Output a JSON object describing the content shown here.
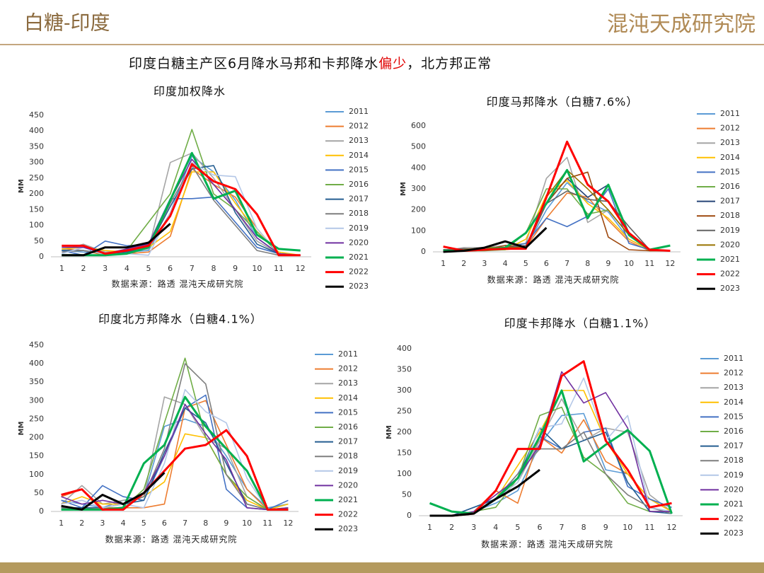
{
  "header": {
    "title": "白糖-印度",
    "logo": "混沌天成研究院"
  },
  "headline": {
    "parts": [
      "印度白糖主产区6月降水马邦和卡邦降水",
      "偏少",
      "，北方邦正常"
    ],
    "colors": [
      "#111111",
      "#e00000",
      "#111111"
    ]
  },
  "chart_data": [
    {
      "type": "line",
      "title": "印度加权降水",
      "y_label": "MM",
      "source": "数据来源：路透 混沌天成研究院",
      "categories": [
        1,
        2,
        3,
        4,
        5,
        6,
        7,
        8,
        9,
        10,
        11,
        12
      ],
      "ylim": [
        0,
        450
      ],
      "yticks": [
        0,
        50,
        100,
        150,
        200,
        250,
        300,
        350,
        400,
        450
      ],
      "series": [
        {
          "name": "2011",
          "color": "#5b9bd5",
          "values": [
            20,
            15,
            10,
            15,
            20,
            140,
            320,
            270,
            180,
            60,
            10,
            5
          ]
        },
        {
          "name": "2012",
          "color": "#ed7d31",
          "values": [
            25,
            20,
            5,
            10,
            15,
            65,
            280,
            230,
            190,
            90,
            10,
            5
          ]
        },
        {
          "name": "2013",
          "color": "#a5a5a5",
          "values": [
            20,
            40,
            15,
            20,
            25,
            300,
            330,
            250,
            150,
            50,
            10,
            5
          ]
        },
        {
          "name": "2014",
          "color": "#ffc000",
          "values": [
            25,
            30,
            20,
            15,
            30,
            80,
            270,
            270,
            170,
            80,
            15,
            5
          ]
        },
        {
          "name": "2015",
          "color": "#4472c4",
          "values": [
            20,
            5,
            50,
            35,
            40,
            185,
            185,
            190,
            110,
            30,
            10,
            5
          ]
        },
        {
          "name": "2016",
          "color": "#70ad47",
          "values": [
            5,
            5,
            5,
            20,
            110,
            200,
            405,
            200,
            150,
            80,
            10,
            5
          ]
        },
        {
          "name": "2017",
          "color": "#255e91",
          "values": [
            20,
            20,
            10,
            15,
            30,
            160,
            280,
            290,
            140,
            40,
            10,
            5
          ]
        },
        {
          "name": "2018",
          "color": "#7f7f7f",
          "values": [
            15,
            20,
            10,
            20,
            30,
            170,
            290,
            180,
            100,
            20,
            5,
            5
          ]
        },
        {
          "name": "2019",
          "color": "#b4c7e7",
          "values": [
            10,
            30,
            5,
            10,
            5,
            140,
            300,
            260,
            255,
            90,
            10,
            5
          ]
        },
        {
          "name": "2020",
          "color": "#7030a0",
          "values": [
            30,
            30,
            10,
            25,
            40,
            180,
            310,
            230,
            150,
            60,
            10,
            5
          ]
        },
        {
          "name": "2021",
          "color": "#00b050",
          "width": 3,
          "values": [
            5,
            5,
            5,
            10,
            30,
            180,
            330,
            185,
            210,
            70,
            25,
            20
          ]
        },
        {
          "name": "2022",
          "color": "#ff0000",
          "width": 3,
          "values": [
            35,
            35,
            10,
            20,
            35,
            130,
            295,
            240,
            215,
            135,
            5,
            5
          ]
        },
        {
          "name": "2023",
          "color": "#000000",
          "width": 3,
          "values": [
            5,
            5,
            30,
            30,
            45,
            105,
            null,
            null,
            null,
            null,
            null,
            null
          ]
        }
      ]
    },
    {
      "type": "line",
      "title": "印度马邦降水（白糖7.6%）",
      "y_label": "MM",
      "source": "数据来源：路透 混沌天成研究院",
      "categories": [
        1,
        2,
        3,
        4,
        5,
        6,
        7,
        8,
        9,
        10,
        11,
        12
      ],
      "ylim": [
        0,
        600
      ],
      "yticks": [
        0,
        100,
        200,
        300,
        400,
        500,
        600
      ],
      "series": [
        {
          "name": "2011",
          "color": "#5b9bd5",
          "values": [
            5,
            10,
            20,
            15,
            20,
            200,
            330,
            240,
            190,
            60,
            10,
            5
          ]
        },
        {
          "name": "2012",
          "color": "#ed7d31",
          "values": [
            10,
            15,
            10,
            10,
            20,
            160,
            280,
            260,
            150,
            50,
            5,
            5
          ]
        },
        {
          "name": "2013",
          "color": "#a5a5a5",
          "values": [
            5,
            20,
            20,
            30,
            40,
            350,
            450,
            140,
            200,
            80,
            10,
            5
          ]
        },
        {
          "name": "2014",
          "color": "#ffc000",
          "values": [
            10,
            10,
            10,
            10,
            60,
            270,
            340,
            230,
            160,
            60,
            10,
            5
          ]
        },
        {
          "name": "2015",
          "color": "#4472c4",
          "values": [
            10,
            5,
            10,
            20,
            40,
            160,
            120,
            170,
            300,
            40,
            10,
            5
          ]
        },
        {
          "name": "2016",
          "color": "#70ad47",
          "values": [
            5,
            5,
            5,
            10,
            90,
            300,
            300,
            180,
            200,
            80,
            10,
            5
          ]
        },
        {
          "name": "2017",
          "color": "#264478",
          "values": [
            10,
            10,
            10,
            20,
            20,
            230,
            350,
            260,
            320,
            90,
            10,
            5
          ]
        },
        {
          "name": "2018",
          "color": "#9e480e",
          "values": [
            10,
            10,
            10,
            30,
            20,
            230,
            350,
            380,
            70,
            10,
            5,
            5
          ]
        },
        {
          "name": "2019",
          "color": "#636363",
          "values": [
            10,
            15,
            10,
            20,
            30,
            230,
            290,
            250,
            240,
            120,
            10,
            5
          ]
        },
        {
          "name": "2020",
          "color": "#997300",
          "values": [
            5,
            10,
            20,
            20,
            20,
            260,
            390,
            300,
            200,
            80,
            10,
            5
          ]
        },
        {
          "name": "2021",
          "color": "#00b050",
          "width": 3,
          "values": [
            5,
            5,
            10,
            20,
            90,
            230,
            390,
            160,
            320,
            80,
            10,
            30
          ]
        },
        {
          "name": "2022",
          "color": "#ff0000",
          "width": 3,
          "values": [
            25,
            5,
            10,
            15,
            15,
            260,
            525,
            320,
            240,
            90,
            10,
            5
          ]
        },
        {
          "name": "2023",
          "color": "#000000",
          "width": 3,
          "values": [
            0,
            5,
            20,
            50,
            20,
            115,
            null,
            null,
            null,
            null,
            null,
            null
          ]
        }
      ]
    },
    {
      "type": "line",
      "title": "印度北方邦降水（白糖4.1%）",
      "y_label": "MM",
      "source": "数据来源：路透 混沌天成研究院",
      "categories": [
        1,
        2,
        3,
        4,
        5,
        6,
        7,
        8,
        9,
        10,
        11,
        12
      ],
      "ylim": [
        0,
        450
      ],
      "yticks": [
        0,
        50,
        100,
        150,
        200,
        250,
        300,
        350,
        400,
        450
      ],
      "series": [
        {
          "name": "2011",
          "color": "#5b9bd5",
          "values": [
            30,
            20,
            10,
            30,
            40,
            230,
            250,
            230,
            150,
            60,
            10,
            20
          ]
        },
        {
          "name": "2012",
          "color": "#ed7d31",
          "values": [
            40,
            60,
            10,
            10,
            10,
            20,
            280,
            300,
            180,
            60,
            5,
            10
          ]
        },
        {
          "name": "2013",
          "color": "#a5a5a5",
          "values": [
            20,
            70,
            20,
            30,
            40,
            310,
            290,
            200,
            170,
            40,
            5,
            10
          ]
        },
        {
          "name": "2014",
          "color": "#ffc000",
          "values": [
            20,
            40,
            20,
            20,
            40,
            80,
            210,
            200,
            100,
            30,
            5,
            20
          ]
        },
        {
          "name": "2015",
          "color": "#4472c4",
          "values": [
            30,
            10,
            70,
            40,
            30,
            150,
            280,
            315,
            60,
            10,
            5,
            30
          ]
        },
        {
          "name": "2016",
          "color": "#70ad47",
          "values": [
            10,
            10,
            5,
            10,
            60,
            240,
            415,
            200,
            100,
            40,
            5,
            5
          ]
        },
        {
          "name": "2017",
          "color": "#255e91",
          "values": [
            10,
            10,
            10,
            20,
            30,
            160,
            280,
            240,
            130,
            20,
            5,
            5
          ]
        },
        {
          "name": "2018",
          "color": "#7f7f7f",
          "values": [
            10,
            5,
            10,
            20,
            40,
            170,
            400,
            345,
            100,
            20,
            5,
            5
          ]
        },
        {
          "name": "2019",
          "color": "#b4c7e7",
          "values": [
            20,
            30,
            10,
            20,
            10,
            130,
            330,
            270,
            240,
            90,
            5,
            5
          ]
        },
        {
          "name": "2020",
          "color": "#7030a0",
          "values": [
            40,
            20,
            30,
            20,
            50,
            150,
            290,
            210,
            140,
            10,
            5,
            10
          ]
        },
        {
          "name": "2021",
          "color": "#00b050",
          "width": 3,
          "values": [
            5,
            5,
            5,
            10,
            130,
            180,
            310,
            230,
            170,
            110,
            5,
            5
          ]
        },
        {
          "name": "2022",
          "color": "#ff0000",
          "width": 3,
          "values": [
            45,
            60,
            5,
            5,
            50,
            110,
            170,
            180,
            220,
            150,
            5,
            5
          ]
        },
        {
          "name": "2023",
          "color": "#000000",
          "width": 3,
          "values": [
            15,
            5,
            45,
            20,
            50,
            105,
            null,
            null,
            null,
            null,
            null,
            null
          ]
        }
      ]
    },
    {
      "type": "line",
      "title": "印度卡邦降水（白糖1.1%）",
      "y_label": "MM",
      "source": "数据来源：路透 混沌天成研究院",
      "categories": [
        1,
        2,
        3,
        4,
        5,
        6,
        7,
        8,
        9,
        10,
        11,
        12
      ],
      "ylim": [
        0,
        400
      ],
      "yticks": [
        0,
        50,
        100,
        150,
        200,
        250,
        300,
        350,
        400
      ],
      "series": [
        {
          "name": "2011",
          "color": "#5b9bd5",
          "values": [
            0,
            0,
            10,
            30,
            60,
            170,
            240,
            245,
            110,
            100,
            40,
            10
          ]
        },
        {
          "name": "2012",
          "color": "#ed7d31",
          "values": [
            0,
            0,
            10,
            60,
            30,
            190,
            150,
            230,
            130,
            100,
            40,
            10
          ]
        },
        {
          "name": "2013",
          "color": "#a5a5a5",
          "values": [
            0,
            0,
            10,
            40,
            80,
            180,
            280,
            180,
            210,
            200,
            50,
            10
          ]
        },
        {
          "name": "2014",
          "color": "#ffc000",
          "values": [
            0,
            0,
            10,
            40,
            120,
            200,
            300,
            300,
            180,
            100,
            40,
            10
          ]
        },
        {
          "name": "2015",
          "color": "#4472c4",
          "values": [
            0,
            0,
            20,
            40,
            100,
            190,
            160,
            200,
            210,
            70,
            40,
            20
          ]
        },
        {
          "name": "2016",
          "color": "#70ad47",
          "values": [
            0,
            0,
            10,
            20,
            90,
            240,
            260,
            140,
            100,
            30,
            10,
            10
          ]
        },
        {
          "name": "2017",
          "color": "#255e91",
          "values": [
            0,
            0,
            20,
            40,
            90,
            210,
            160,
            180,
            200,
            80,
            10,
            5
          ]
        },
        {
          "name": "2018",
          "color": "#7f7f7f",
          "values": [
            0,
            0,
            10,
            40,
            100,
            160,
            160,
            200,
            100,
            50,
            20,
            5
          ]
        },
        {
          "name": "2019",
          "color": "#b4c7e7",
          "values": [
            0,
            0,
            10,
            40,
            80,
            210,
            220,
            330,
            180,
            240,
            20,
            10
          ]
        },
        {
          "name": "2020",
          "color": "#7030a0",
          "values": [
            0,
            0,
            10,
            50,
            90,
            170,
            345,
            270,
            295,
            210,
            10,
            10
          ]
        },
        {
          "name": "2021",
          "color": "#00b050",
          "width": 3,
          "values": [
            30,
            10,
            5,
            40,
            90,
            190,
            300,
            130,
            170,
            205,
            155,
            5
          ]
        },
        {
          "name": "2022",
          "color": "#ff0000",
          "width": 3,
          "values": [
            0,
            0,
            5,
            60,
            160,
            160,
            335,
            370,
            180,
            110,
            20,
            30
          ]
        },
        {
          "name": "2023",
          "color": "#000000",
          "width": 3,
          "values": [
            0,
            0,
            5,
            40,
            70,
            110,
            null,
            null,
            null,
            null,
            null,
            null
          ]
        }
      ]
    }
  ]
}
